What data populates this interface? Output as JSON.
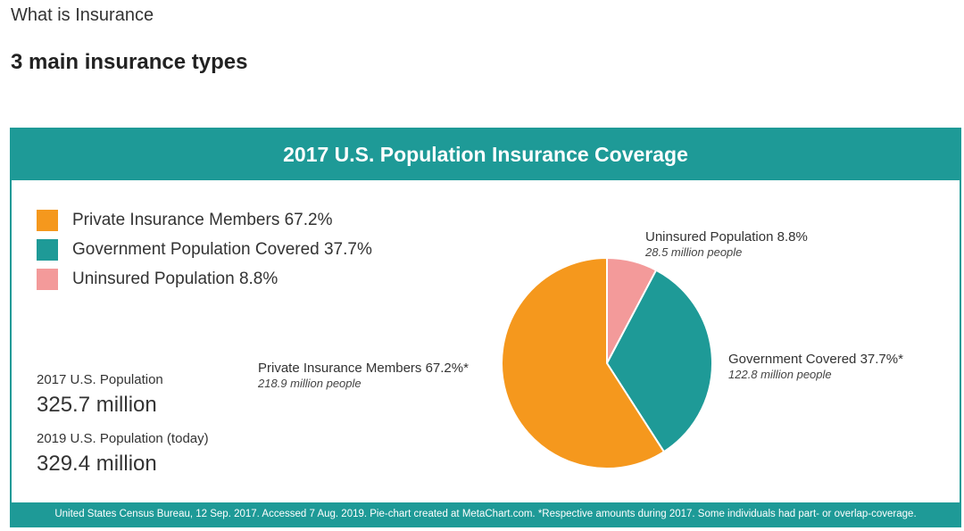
{
  "page": {
    "breadcrumb": "What is Insurance",
    "section_title": "3 main insurance types"
  },
  "card": {
    "title": "2017 U.S. Population Insurance Coverage",
    "footer": "United States Census Bureau, 12 Sep. 2017. Accessed 7 Aug. 2019. Pie-chart created at MetaChart.com. *Respective amounts during 2017. Some individuals had part- or overlap-coverage.",
    "population": [
      {
        "label": "2017 U.S. Population",
        "value": "325.7 million"
      },
      {
        "label": "2019 U.S. Population (today)",
        "value": "329.4 million"
      }
    ]
  },
  "colors": {
    "teal": "#1e9a97",
    "private": "#f5981d",
    "government": "#1e9a97",
    "uninsured": "#f39a9a"
  },
  "chart_data": {
    "type": "pie",
    "title": "2017 U.S. Population Insurance Coverage",
    "legend_position": "top-left",
    "legend": [
      "Private Insurance Members 67.2%",
      "Government Population Covered 37.7%",
      "Uninsured Population 8.8%"
    ],
    "slices": [
      {
        "label": "Uninsured Population 8.8%",
        "sublabel": "28.5 million people",
        "percent": 8.8,
        "color": "#f39a9a"
      },
      {
        "label": "Government Covered 37.7%*",
        "sublabel": "122.8 million people",
        "percent": 37.7,
        "color": "#1e9a97"
      },
      {
        "label": "Private Insurance Members 67.2%*",
        "sublabel": "218.9 million people",
        "percent": 67.2,
        "color": "#f5981d"
      }
    ]
  }
}
